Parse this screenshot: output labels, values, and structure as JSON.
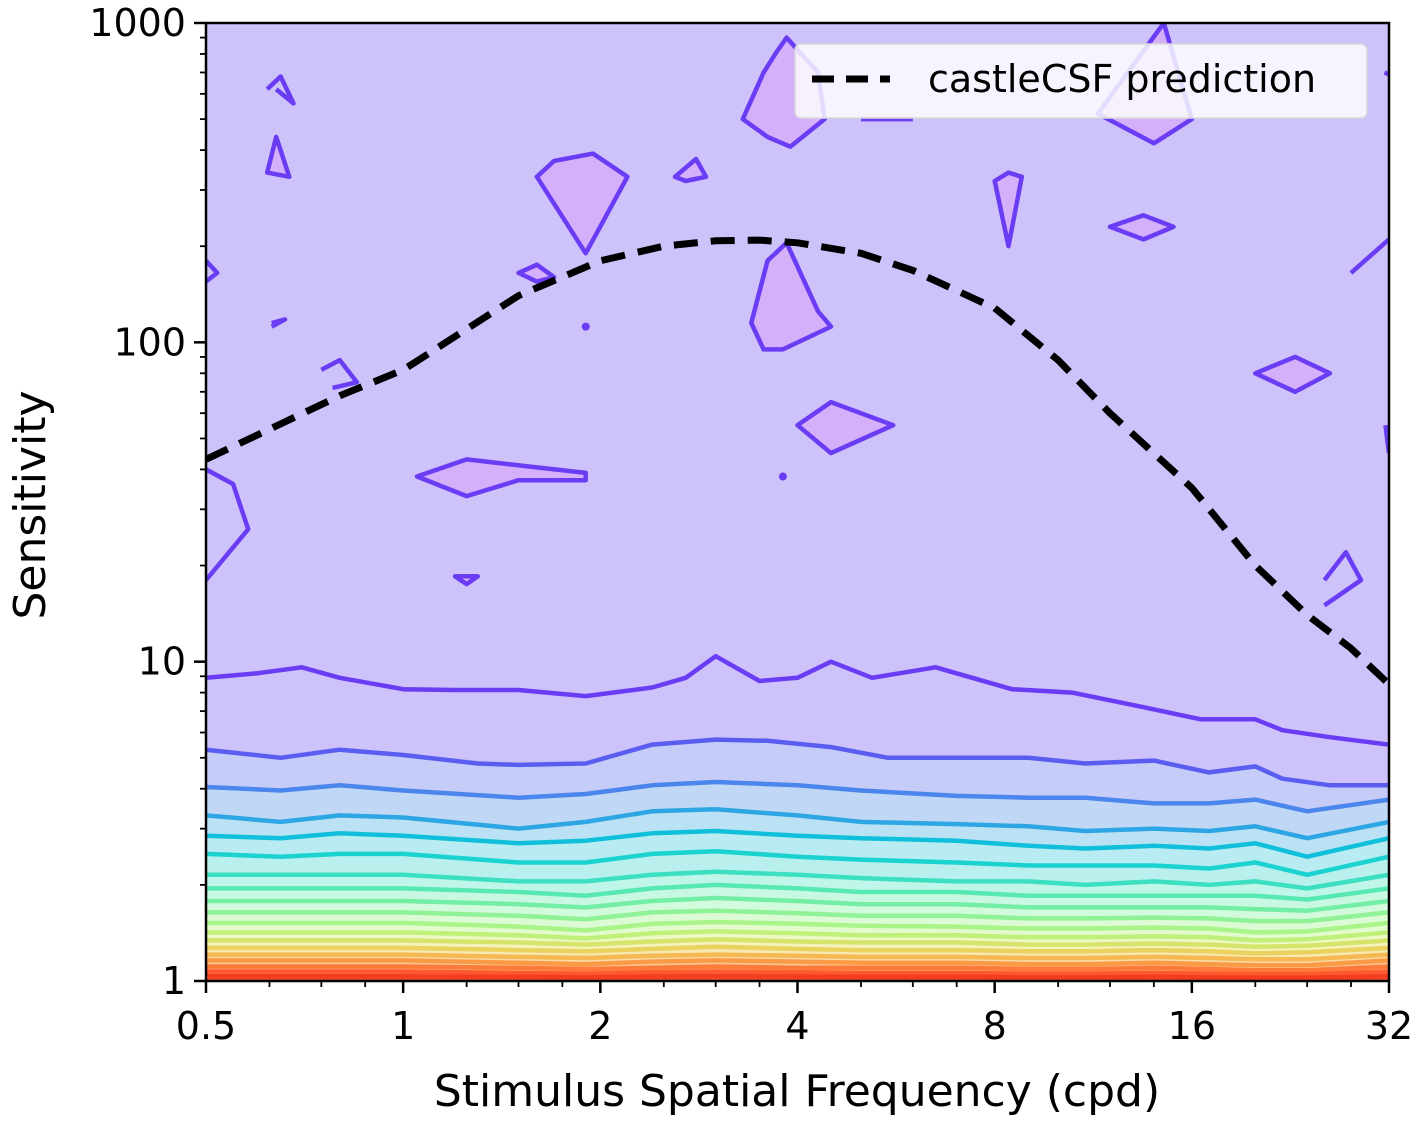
{
  "chart_data": {
    "type": "contour",
    "xlabel": "Stimulus Spatial Frequency (cpd)",
    "ylabel": "Sensitivity",
    "xscale": "log2",
    "yscale": "log10",
    "xlim": [
      0.5,
      32
    ],
    "ylim": [
      1,
      1000
    ],
    "xticks": [
      0.5,
      1,
      2,
      4,
      8,
      16,
      32
    ],
    "xtick_labels": [
      "0.5",
      "1",
      "2",
      "4",
      "8",
      "16",
      "32"
    ],
    "yticks": [
      1,
      10,
      100,
      1000
    ],
    "ytick_labels": [
      "1",
      "10",
      "100",
      "1000"
    ],
    "legend": {
      "position": "top-right",
      "entries": [
        "castleCSF prediction"
      ]
    },
    "colormap": "rainbow",
    "series": [
      {
        "name": "castleCSF prediction",
        "style": "dashed",
        "color": "#000000",
        "x": [
          0.5,
          0.8,
          1.0,
          1.5,
          2.0,
          2.5,
          3.0,
          3.5,
          4.0,
          5.0,
          6.0,
          8.0,
          10.0,
          12.0,
          16.0,
          20.0,
          24.0,
          28.0,
          32.0
        ],
        "y": [
          43,
          68,
          82,
          140,
          180,
          200,
          208,
          209,
          205,
          190,
          168,
          128,
          88,
          60,
          35,
          20,
          14,
          11,
          8.5
        ]
      }
    ],
    "contour_levels": [
      {
        "color": "#6a3cf4",
        "fill": "#cdc3fa",
        "x": [
          0.5,
          0.6,
          0.7,
          0.8,
          1.0,
          1.2,
          1.5,
          1.9,
          2.4,
          2.7,
          3.0,
          3.5,
          4.0,
          4.5,
          5.2,
          6.5,
          8.5,
          10.5,
          13.5,
          16.5,
          20.0,
          22.0,
          26.0,
          32.0
        ],
        "y": [
          8.9,
          9.2,
          9.6,
          8.9,
          8.2,
          8.15,
          8.15,
          7.8,
          8.3,
          8.9,
          10.4,
          8.7,
          8.9,
          10,
          8.9,
          9.6,
          8.2,
          8.0,
          7.2,
          6.6,
          6.6,
          6.1,
          5.8,
          5.5
        ]
      },
      {
        "color": "#5a5ef0",
        "fill": "#c6ccf8",
        "x": [
          0.5,
          0.65,
          0.8,
          1.0,
          1.3,
          1.5,
          1.9,
          2.4,
          3.0,
          3.6,
          4.5,
          5.5,
          7.0,
          9.0,
          11.0,
          14.0,
          17.0,
          20.0,
          22.0,
          26.0,
          32.0
        ],
        "y": [
          5.3,
          5.0,
          5.3,
          5.1,
          4.8,
          4.75,
          4.8,
          5.5,
          5.7,
          5.65,
          5.4,
          5.0,
          5.0,
          5.0,
          4.8,
          4.9,
          4.5,
          4.7,
          4.3,
          4.1,
          4.1
        ]
      },
      {
        "color": "#4b86ec",
        "fill": "#c0d8f6",
        "x": [
          0.5,
          0.65,
          0.8,
          1.0,
          1.5,
          1.9,
          2.4,
          3.0,
          4.0,
          5.0,
          7.0,
          9.0,
          11.0,
          14.0,
          17.0,
          20.0,
          24.0,
          32.0
        ],
        "y": [
          4.05,
          3.95,
          4.1,
          3.95,
          3.75,
          3.85,
          4.1,
          4.2,
          4.1,
          3.95,
          3.8,
          3.75,
          3.75,
          3.6,
          3.6,
          3.7,
          3.4,
          3.7
        ]
      },
      {
        "color": "#2ea6e4",
        "fill": "#bbe2f4",
        "x": [
          0.5,
          0.65,
          0.8,
          1.0,
          1.5,
          1.9,
          2.4,
          3.0,
          4.0,
          5.0,
          7.0,
          9.0,
          11.0,
          14.0,
          17.0,
          20.0,
          24.0,
          32.0
        ],
        "y": [
          3.3,
          3.15,
          3.3,
          3.25,
          3.0,
          3.15,
          3.4,
          3.45,
          3.3,
          3.15,
          3.1,
          3.05,
          2.95,
          3.0,
          2.95,
          3.05,
          2.8,
          3.15
        ]
      },
      {
        "color": "#10c0da",
        "fill": "#b8ebf2",
        "x": [
          0.5,
          0.65,
          0.8,
          1.0,
          1.5,
          1.9,
          2.4,
          3.0,
          4.0,
          5.0,
          7.0,
          9.0,
          11.0,
          14.0,
          17.0,
          20.0,
          24.0,
          32.0
        ],
        "y": [
          2.85,
          2.8,
          2.9,
          2.85,
          2.7,
          2.75,
          2.9,
          2.95,
          2.85,
          2.8,
          2.75,
          2.65,
          2.6,
          2.65,
          2.6,
          2.7,
          2.45,
          2.8
        ]
      },
      {
        "color": "#1ad2cf",
        "fill": "#b9f0ee",
        "x": [
          0.5,
          0.65,
          0.8,
          1.0,
          1.5,
          1.9,
          2.4,
          3.0,
          4.0,
          5.0,
          7.0,
          9.0,
          11.0,
          14.0,
          17.0,
          20.0,
          24.0,
          32.0
        ],
        "y": [
          2.5,
          2.45,
          2.5,
          2.5,
          2.35,
          2.35,
          2.5,
          2.55,
          2.45,
          2.4,
          2.35,
          2.3,
          2.3,
          2.3,
          2.25,
          2.35,
          2.15,
          2.45
        ]
      },
      {
        "color": "#3cdfc0",
        "fill": "#c0f6e9",
        "x": [
          0.5,
          0.8,
          1.0,
          1.5,
          1.9,
          2.4,
          3.0,
          4.0,
          5.0,
          7.0,
          9.0,
          11.0,
          14.0,
          17.0,
          20.0,
          24.0,
          32.0
        ],
        "y": [
          2.15,
          2.15,
          2.15,
          2.05,
          2.05,
          2.15,
          2.2,
          2.15,
          2.1,
          2.05,
          2.05,
          2.0,
          2.05,
          2.0,
          2.05,
          1.95,
          2.15
        ]
      },
      {
        "color": "#58e8b2",
        "fill": "#c8f8e2",
        "x": [
          0.5,
          0.8,
          1.0,
          1.5,
          1.9,
          2.4,
          3.0,
          4.0,
          5.0,
          7.0,
          9.0,
          11.0,
          14.0,
          17.0,
          20.0,
          24.0,
          32.0
        ],
        "y": [
          1.95,
          1.95,
          1.95,
          1.9,
          1.85,
          1.95,
          2.0,
          1.95,
          1.9,
          1.9,
          1.85,
          1.85,
          1.85,
          1.85,
          1.85,
          1.8,
          1.95
        ]
      },
      {
        "color": "#74eea4",
        "fill": "#d2fadc",
        "x": [
          0.5,
          0.8,
          1.0,
          1.5,
          1.9,
          2.4,
          3.0,
          4.0,
          5.0,
          7.0,
          9.0,
          11.0,
          14.0,
          17.0,
          20.0,
          24.0,
          32.0
        ],
        "y": [
          1.78,
          1.78,
          1.78,
          1.74,
          1.7,
          1.78,
          1.82,
          1.78,
          1.74,
          1.74,
          1.7,
          1.7,
          1.7,
          1.7,
          1.68,
          1.66,
          1.78
        ]
      },
      {
        "color": "#8ff296",
        "fill": "#dcfbd5",
        "x": [
          0.5,
          0.8,
          1.0,
          1.5,
          1.9,
          2.4,
          3.0,
          4.0,
          5.0,
          7.0,
          9.0,
          11.0,
          14.0,
          17.0,
          20.0,
          24.0,
          32.0
        ],
        "y": [
          1.64,
          1.64,
          1.64,
          1.6,
          1.56,
          1.64,
          1.66,
          1.63,
          1.6,
          1.6,
          1.57,
          1.57,
          1.58,
          1.57,
          1.54,
          1.54,
          1.64
        ]
      },
      {
        "color": "#a8f488",
        "fill": "#e3fbcc",
        "x": [
          0.5,
          0.8,
          1.0,
          1.5,
          1.9,
          2.4,
          3.0,
          4.0,
          5.0,
          7.0,
          9.0,
          11.0,
          14.0,
          17.0,
          20.0,
          24.0,
          32.0
        ],
        "y": [
          1.52,
          1.52,
          1.52,
          1.48,
          1.44,
          1.51,
          1.53,
          1.51,
          1.49,
          1.48,
          1.46,
          1.46,
          1.47,
          1.46,
          1.42,
          1.43,
          1.52
        ]
      },
      {
        "color": "#c0f07a",
        "fill": "#ecf9c4",
        "x": [
          0.5,
          0.8,
          1.0,
          1.5,
          1.9,
          2.4,
          3.0,
          4.0,
          5.0,
          7.0,
          9.0,
          11.0,
          14.0,
          17.0,
          20.0,
          24.0,
          32.0
        ],
        "y": [
          1.42,
          1.42,
          1.42,
          1.39,
          1.36,
          1.41,
          1.43,
          1.41,
          1.39,
          1.39,
          1.37,
          1.37,
          1.38,
          1.37,
          1.34,
          1.35,
          1.42
        ]
      },
      {
        "color": "#d6e46c",
        "fill": "#f4f3bc",
        "x": [
          0.5,
          0.8,
          1.0,
          1.5,
          1.9,
          2.4,
          3.0,
          4.0,
          5.0,
          7.0,
          9.0,
          11.0,
          14.0,
          17.0,
          20.0,
          24.0,
          32.0
        ],
        "y": [
          1.34,
          1.34,
          1.34,
          1.32,
          1.3,
          1.33,
          1.35,
          1.33,
          1.32,
          1.32,
          1.3,
          1.3,
          1.31,
          1.3,
          1.28,
          1.29,
          1.34
        ]
      },
      {
        "color": "#ead25e",
        "fill": "#f8e8b2",
        "x": [
          0.5,
          0.8,
          1.0,
          1.5,
          1.9,
          2.4,
          3.0,
          4.0,
          5.0,
          7.0,
          9.0,
          11.0,
          14.0,
          17.0,
          20.0,
          24.0,
          32.0
        ],
        "y": [
          1.27,
          1.27,
          1.27,
          1.25,
          1.24,
          1.26,
          1.28,
          1.26,
          1.25,
          1.25,
          1.24,
          1.24,
          1.25,
          1.24,
          1.22,
          1.23,
          1.27
        ]
      },
      {
        "color": "#f6b852",
        "fill": "#fbdca6",
        "x": [
          0.5,
          0.8,
          1.0,
          1.5,
          1.9,
          2.4,
          3.0,
          4.0,
          5.0,
          7.0,
          9.0,
          11.0,
          14.0,
          17.0,
          20.0,
          24.0,
          32.0
        ],
        "y": [
          1.21,
          1.21,
          1.21,
          1.19,
          1.18,
          1.2,
          1.21,
          1.2,
          1.19,
          1.19,
          1.18,
          1.18,
          1.19,
          1.18,
          1.17,
          1.17,
          1.21
        ]
      },
      {
        "color": "#fb9a46",
        "fill": "#fcc996",
        "x": [
          0.5,
          0.8,
          1.0,
          1.5,
          1.9,
          2.4,
          3.0,
          4.0,
          5.0,
          7.0,
          9.0,
          11.0,
          14.0,
          17.0,
          20.0,
          24.0,
          32.0
        ],
        "y": [
          1.16,
          1.16,
          1.16,
          1.14,
          1.13,
          1.15,
          1.16,
          1.15,
          1.14,
          1.14,
          1.13,
          1.13,
          1.14,
          1.13,
          1.12,
          1.12,
          1.16
        ]
      },
      {
        "color": "#fd7a3a",
        "fill": "#fdb184",
        "x": [
          0.5,
          0.8,
          1.0,
          1.5,
          1.9,
          2.4,
          3.0,
          4.0,
          5.0,
          7.0,
          9.0,
          11.0,
          14.0,
          17.0,
          20.0,
          24.0,
          32.0
        ],
        "y": [
          1.11,
          1.11,
          1.11,
          1.1,
          1.09,
          1.1,
          1.11,
          1.1,
          1.1,
          1.1,
          1.09,
          1.09,
          1.1,
          1.09,
          1.08,
          1.08,
          1.11
        ]
      },
      {
        "color": "#fe5a2e",
        "fill": "#fd9670",
        "x": [
          0.5,
          0.8,
          1.0,
          1.5,
          1.9,
          2.4,
          3.0,
          4.0,
          5.0,
          7.0,
          9.0,
          11.0,
          14.0,
          17.0,
          20.0,
          24.0,
          32.0
        ],
        "y": [
          1.07,
          1.07,
          1.07,
          1.06,
          1.055,
          1.065,
          1.07,
          1.065,
          1.06,
          1.06,
          1.055,
          1.055,
          1.06,
          1.055,
          1.05,
          1.05,
          1.07
        ]
      },
      {
        "color": "#f43c22",
        "fill": "#fa7858",
        "x": [
          0.5,
          0.8,
          1.0,
          1.5,
          1.9,
          2.4,
          3.0,
          4.0,
          5.0,
          7.0,
          9.0,
          11.0,
          14.0,
          17.0,
          20.0,
          24.0,
          32.0
        ],
        "y": [
          1.035,
          1.035,
          1.035,
          1.03,
          1.028,
          1.033,
          1.036,
          1.033,
          1.03,
          1.03,
          1.028,
          1.028,
          1.03,
          1.028,
          1.025,
          1.025,
          1.035
        ]
      }
    ],
    "contour_islands": [
      {
        "x": [
          0.5,
          0.55,
          0.58,
          0.5
        ],
        "y": [
          40,
          36,
          26,
          18
        ]
      },
      {
        "x": [
          0.5,
          0.52,
          0.5
        ],
        "y": [
          180,
          165,
          155
        ]
      },
      {
        "x": [
          0.62,
          0.65,
          0.68,
          0.64
        ],
        "y": [
          620,
          680,
          560,
          620
        ]
      },
      {
        "x": [
          0.62,
          0.64,
          0.67,
          0.62
        ],
        "y": [
          340,
          440,
          330,
          340
        ]
      },
      {
        "x": [
          0.63,
          0.66,
          0.63
        ],
        "y": [
          115,
          118,
          112
        ]
      },
      {
        "x": [
          0.75,
          0.8,
          0.85,
          0.78
        ],
        "y": [
          82,
          88,
          75,
          72
        ]
      },
      {
        "x": [
          1.05,
          1.25,
          1.9,
          1.9,
          1.5,
          1.25,
          1.05
        ],
        "y": [
          38,
          43,
          39,
          37,
          37,
          33,
          38
        ]
      },
      {
        "x": [
          1.2,
          1.3,
          1.25,
          1.2
        ],
        "y": [
          18.5,
          18.5,
          17.5,
          18.5
        ]
      },
      {
        "x": [
          1.5,
          1.6,
          1.7,
          1.6,
          1.5
        ],
        "y": [
          165,
          175,
          160,
          155,
          165
        ]
      },
      {
        "x": [
          1.6,
          1.7,
          1.95,
          2.2,
          1.9,
          1.6
        ],
        "y": [
          330,
          370,
          390,
          330,
          190,
          330
        ]
      },
      {
        "x": [
          1.9,
          1.9
        ],
        "y": [
          112,
          112
        ]
      },
      {
        "x": [
          2.6,
          2.8,
          2.9,
          2.7,
          2.6
        ],
        "y": [
          330,
          375,
          330,
          320,
          330
        ]
      },
      {
        "x": [
          3.3,
          3.55,
          3.7,
          3.85,
          4.3,
          4.4,
          3.9,
          3.6,
          3.3
        ],
        "y": [
          500,
          700,
          800,
          900,
          700,
          500,
          410,
          440,
          500
        ]
      },
      {
        "x": [
          3.4,
          3.6,
          3.85,
          4.3,
          4.5,
          3.8,
          3.55,
          3.4
        ],
        "y": [
          115,
          180,
          205,
          125,
          112,
          95,
          95,
          115
        ]
      },
      {
        "x": [
          3.8,
          3.8
        ],
        "y": [
          38,
          38
        ]
      },
      {
        "x": [
          4.0,
          4.5,
          5.6,
          4.5,
          4.0
        ],
        "y": [
          55,
          65,
          55,
          45,
          55
        ]
      },
      {
        "x": [
          5.0,
          6.0
        ],
        "y": [
          500,
          500
        ]
      },
      {
        "x": [
          8.0,
          8.4,
          8.8,
          8.4,
          8.0
        ],
        "y": [
          320,
          200,
          330,
          340,
          320
        ]
      },
      {
        "x": [
          12.0,
          13.5,
          15.0,
          13.5,
          12.0
        ],
        "y": [
          230,
          250,
          230,
          210,
          230
        ]
      },
      {
        "x": [
          11.5,
          14.0,
          16.0,
          14.5,
          11.5
        ],
        "y": [
          520,
          420,
          500,
          1000,
          520
        ]
      },
      {
        "x": [
          20.0,
          23.0,
          26.0,
          23.0,
          20.0
        ],
        "y": [
          80,
          90,
          80,
          70,
          80
        ]
      },
      {
        "x": [
          25.5,
          27.5,
          29.0,
          25.5
        ],
        "y": [
          18,
          22,
          18,
          15
        ]
      },
      {
        "x": [
          28.0,
          32.0
        ],
        "y": [
          165,
          210
        ]
      },
      {
        "x": [
          31.5,
          32.0
        ],
        "y": [
          700,
          690
        ]
      },
      {
        "x": [
          31.6,
          32.0
        ],
        "y": [
          55,
          45
        ]
      }
    ]
  }
}
